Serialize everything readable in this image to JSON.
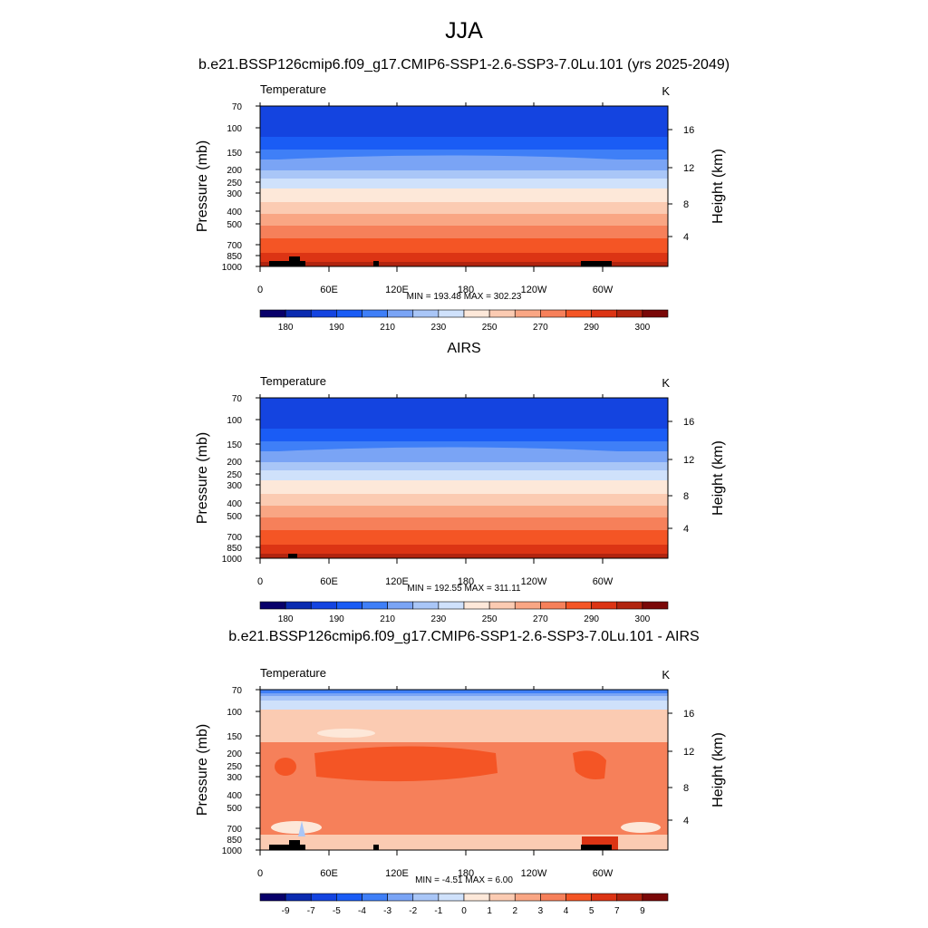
{
  "figure": {
    "title": "JJA",
    "subtitle": "b.e21.BSSP126cmip6.f09_g17.CMIP6-SSP1-2.6-SSP3-7.0Lu.101 (yrs 2025-2049)"
  },
  "chart_data": [
    {
      "type": "heatmap",
      "title": "",
      "left_label": "Temperature",
      "right_label": "K",
      "ylabel": "Pressure (mb)",
      "y2label": "Height (km)",
      "x_ticks": [
        "0",
        "60E",
        "120E",
        "180",
        "120W",
        "60W"
      ],
      "y_ticks": [
        "70",
        "100",
        "150",
        "200",
        "250",
        "300",
        "400",
        "500",
        "700",
        "850",
        "1000"
      ],
      "y2_ticks": [
        "16",
        "12",
        "8",
        "4"
      ],
      "stats": "MIN = 193.48  MAX = 302.23",
      "min": 193.48,
      "max": 302.23,
      "colorbar_labels": [
        "180",
        "190",
        "210",
        "230",
        "250",
        "270",
        "290",
        "300"
      ]
    },
    {
      "type": "heatmap",
      "title": "AIRS",
      "left_label": "Temperature",
      "right_label": "K",
      "ylabel": "Pressure (mb)",
      "y2label": "Height (km)",
      "x_ticks": [
        "0",
        "60E",
        "120E",
        "180",
        "120W",
        "60W"
      ],
      "y_ticks": [
        "70",
        "100",
        "150",
        "200",
        "250",
        "300",
        "400",
        "500",
        "700",
        "850",
        "1000"
      ],
      "y2_ticks": [
        "16",
        "12",
        "8",
        "4"
      ],
      "stats": "MIN = 192.55  MAX = 311.11",
      "min": 192.55,
      "max": 311.11,
      "colorbar_labels": [
        "180",
        "190",
        "210",
        "230",
        "250",
        "270",
        "290",
        "300"
      ]
    },
    {
      "type": "heatmap",
      "title": "b.e21.BSSP126cmip6.f09_g17.CMIP6-SSP1-2.6-SSP3-7.0Lu.101 - AIRS",
      "left_label": "Temperature",
      "right_label": "K",
      "ylabel": "Pressure (mb)",
      "y2label": "Height (km)",
      "x_ticks": [
        "0",
        "60E",
        "120E",
        "180",
        "120W",
        "60W"
      ],
      "y_ticks": [
        "70",
        "100",
        "150",
        "200",
        "250",
        "300",
        "400",
        "500",
        "700",
        "850",
        "1000"
      ],
      "y2_ticks": [
        "16",
        "12",
        "8",
        "4"
      ],
      "stats": "MIN =  -4.51  MAX =   6.00",
      "min": -4.51,
      "max": 6.0,
      "colorbar_labels": [
        "-9",
        "-7",
        "-5",
        "-4",
        "-3",
        "-2",
        "-1",
        "0",
        "1",
        "2",
        "3",
        "4",
        "5",
        "7",
        "9"
      ]
    }
  ],
  "colors": {
    "palette": [
      "#08006a",
      "#0a2bb0",
      "#1444e0",
      "#1a5cf5",
      "#3f7ff7",
      "#7aa4f5",
      "#a9c6f7",
      "#cfe1fb",
      "#fde8d9",
      "#fbcbb2",
      "#f9a684",
      "#f6805a",
      "#f45525",
      "#dc3414",
      "#b1240f",
      "#7a0808"
    ]
  }
}
